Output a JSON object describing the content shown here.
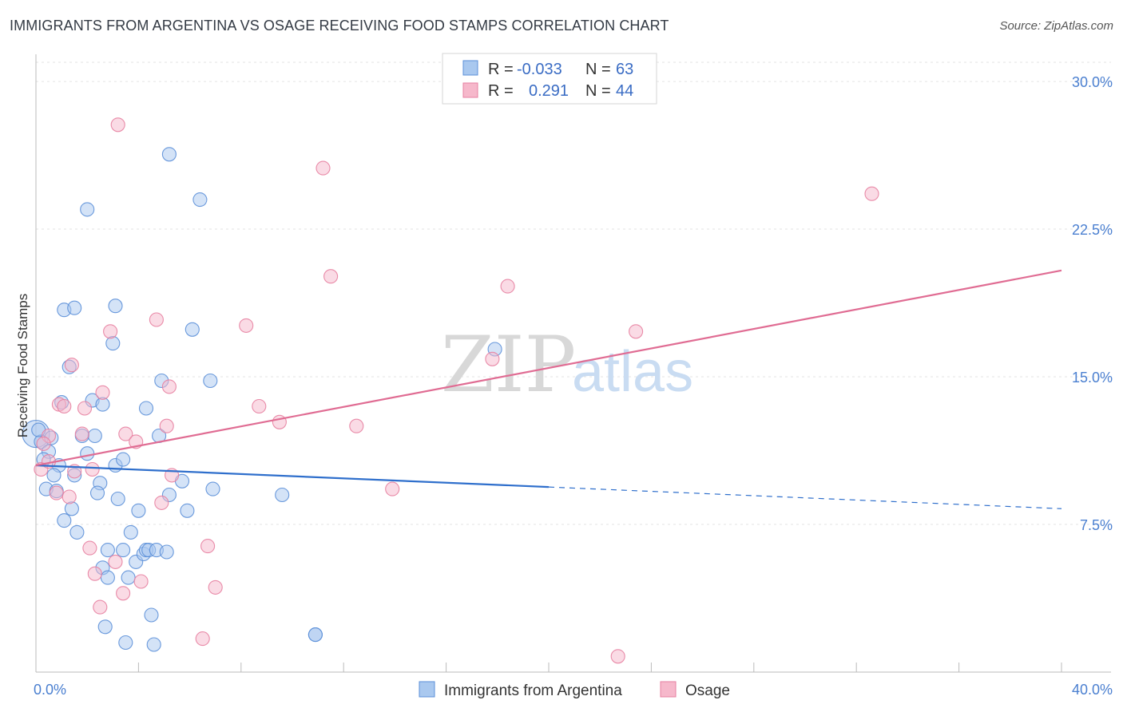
{
  "header": {
    "title": "IMMIGRANTS FROM ARGENTINA VS OSAGE RECEIVING FOOD STAMPS CORRELATION CHART",
    "source": "Source: ZipAtlas.com"
  },
  "watermark": {
    "zip": "ZIP",
    "atlas": "atlas"
  },
  "legend": {
    "rows": [
      {
        "r_label": "R =",
        "r_value": "-0.033",
        "n_label": "N =",
        "n_value": "63",
        "color": "#a9c8ef"
      },
      {
        "r_label": "R =",
        "r_value": "0.291",
        "n_label": "N =",
        "n_value": "44",
        "color": "#f6b8cb"
      }
    ]
  },
  "chart_data": {
    "type": "scatter",
    "title": "IMMIGRANTS FROM ARGENTINA VS OSAGE RECEIVING FOOD STAMPS CORRELATION CHART",
    "xlabel": "",
    "ylabel": "Receiving Food Stamps",
    "xlim": [
      0,
      40
    ],
    "ylim": [
      0,
      31.3
    ],
    "x_tick_labels": [
      {
        "value": 0,
        "label": "0.0%"
      },
      {
        "value": 40,
        "label": "40.0%"
      }
    ],
    "y_tick_labels": [
      {
        "value": 7.5,
        "label": "7.5%"
      },
      {
        "value": 15,
        "label": "15.0%"
      },
      {
        "value": 22.5,
        "label": "22.5%"
      },
      {
        "value": 30,
        "label": "30.0%"
      }
    ],
    "grid": true,
    "legend_position": "top-center",
    "series": [
      {
        "name": "Immigrants from Argentina",
        "color": "#a9c8ef",
        "stroke": "#5b8fd8",
        "line_color": "#2f6fcc",
        "trend": {
          "x0": 0,
          "y0": 10.5,
          "x_solid_end": 20,
          "y_solid_end": 9.4,
          "x1": 40,
          "y1": 8.3
        },
        "points": [
          [
            0.0,
            12.1
          ],
          [
            0.2,
            11.7
          ],
          [
            0.5,
            11.2
          ],
          [
            0.3,
            10.8
          ],
          [
            0.6,
            11.9
          ],
          [
            0.9,
            10.5
          ],
          [
            0.7,
            10.0
          ],
          [
            0.4,
            9.3
          ],
          [
            0.8,
            9.2
          ],
          [
            1.0,
            13.7
          ],
          [
            1.3,
            15.5
          ],
          [
            1.1,
            7.7
          ],
          [
            1.4,
            8.3
          ],
          [
            1.6,
            7.1
          ],
          [
            1.5,
            10.0
          ],
          [
            1.8,
            12.0
          ],
          [
            2.0,
            11.1
          ],
          [
            2.2,
            13.8
          ],
          [
            1.1,
            18.4
          ],
          [
            1.5,
            18.5
          ],
          [
            2.0,
            23.5
          ],
          [
            2.3,
            12.0
          ],
          [
            2.5,
            9.6
          ],
          [
            2.4,
            9.1
          ],
          [
            2.6,
            5.3
          ],
          [
            2.8,
            4.8
          ],
          [
            2.6,
            13.6
          ],
          [
            2.8,
            6.2
          ],
          [
            2.7,
            2.3
          ],
          [
            3.0,
            16.7
          ],
          [
            3.2,
            8.8
          ],
          [
            3.1,
            10.5
          ],
          [
            3.4,
            10.8
          ],
          [
            3.1,
            18.6
          ],
          [
            3.4,
            6.2
          ],
          [
            3.6,
            4.8
          ],
          [
            3.7,
            7.1
          ],
          [
            3.5,
            1.5
          ],
          [
            3.9,
            5.6
          ],
          [
            4.0,
            8.2
          ],
          [
            4.2,
            6.0
          ],
          [
            4.3,
            13.4
          ],
          [
            4.3,
            6.2
          ],
          [
            4.5,
            2.9
          ],
          [
            4.4,
            6.2
          ],
          [
            4.6,
            1.4
          ],
          [
            4.7,
            6.2
          ],
          [
            4.9,
            14.8
          ],
          [
            4.8,
            12.0
          ],
          [
            5.1,
            6.1
          ],
          [
            5.2,
            9.0
          ],
          [
            5.7,
            9.7
          ],
          [
            5.9,
            8.2
          ],
          [
            5.2,
            26.3
          ],
          [
            6.1,
            17.4
          ],
          [
            6.4,
            24.0
          ],
          [
            6.9,
            9.3
          ],
          [
            6.8,
            14.8
          ],
          [
            9.6,
            9.0
          ],
          [
            10.9,
            1.9
          ],
          [
            10.9,
            1.9
          ],
          [
            17.9,
            16.4
          ],
          [
            0.1,
            12.3
          ]
        ]
      },
      {
        "name": "Osage",
        "color": "#f6b8cb",
        "stroke": "#e77fa0",
        "line_color": "#e06c93",
        "trend": {
          "x0": 0,
          "y0": 10.5,
          "x1": 40,
          "y1": 20.4
        },
        "points": [
          [
            0.2,
            10.3
          ],
          [
            0.5,
            10.7
          ],
          [
            0.5,
            12.0
          ],
          [
            0.8,
            9.1
          ],
          [
            0.9,
            13.6
          ],
          [
            1.1,
            13.5
          ],
          [
            1.3,
            8.9
          ],
          [
            1.4,
            15.6
          ],
          [
            1.5,
            10.2
          ],
          [
            1.8,
            12.1
          ],
          [
            1.9,
            13.4
          ],
          [
            2.1,
            6.3
          ],
          [
            2.2,
            10.3
          ],
          [
            2.3,
            5.0
          ],
          [
            2.5,
            3.3
          ],
          [
            2.6,
            14.2
          ],
          [
            2.9,
            17.3
          ],
          [
            3.1,
            5.6
          ],
          [
            3.2,
            27.8
          ],
          [
            3.4,
            4.0
          ],
          [
            3.5,
            12.1
          ],
          [
            3.9,
            11.7
          ],
          [
            4.1,
            4.6
          ],
          [
            4.7,
            17.9
          ],
          [
            4.9,
            8.6
          ],
          [
            5.1,
            12.5
          ],
          [
            5.2,
            14.5
          ],
          [
            5.3,
            10.0
          ],
          [
            6.5,
            1.7
          ],
          [
            6.7,
            6.4
          ],
          [
            7.0,
            4.3
          ],
          [
            8.2,
            17.6
          ],
          [
            8.7,
            13.5
          ],
          [
            9.5,
            12.7
          ],
          [
            11.2,
            25.6
          ],
          [
            11.5,
            20.1
          ],
          [
            12.5,
            12.5
          ],
          [
            13.9,
            9.3
          ],
          [
            17.8,
            15.9
          ],
          [
            18.4,
            19.6
          ],
          [
            22.7,
            0.8
          ],
          [
            23.4,
            17.3
          ],
          [
            32.6,
            24.3
          ],
          [
            0.3,
            11.6
          ]
        ]
      }
    ]
  },
  "bottom_legend": [
    {
      "label": "Immigrants from Argentina",
      "color": "#a9c8ef"
    },
    {
      "label": "Osage",
      "color": "#f6b8cb"
    }
  ]
}
